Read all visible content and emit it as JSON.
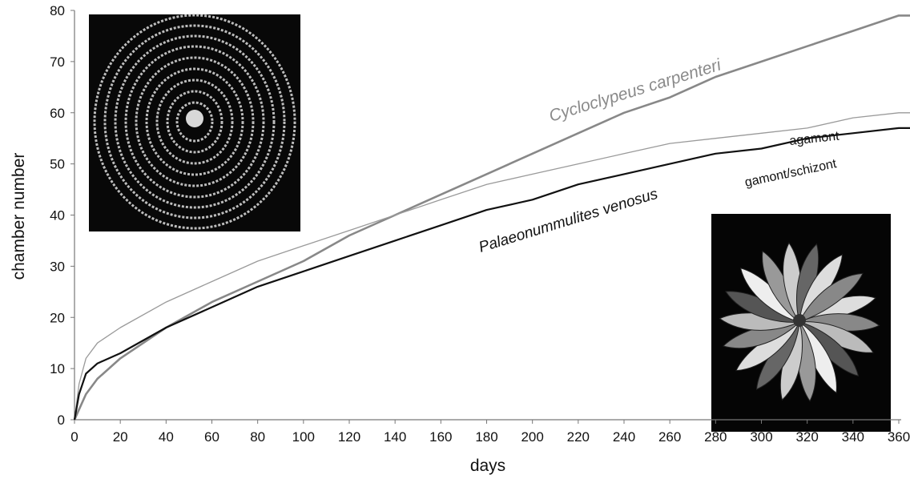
{
  "chart_data": {
    "type": "line",
    "x_label": "days",
    "y_label": "chamber number",
    "xlim": [
      0,
      365
    ],
    "ylim": [
      0,
      80
    ],
    "xticks": [
      0,
      20,
      40,
      60,
      80,
      100,
      120,
      140,
      160,
      180,
      200,
      220,
      240,
      260,
      280,
      300,
      320,
      340,
      360
    ],
    "yticks": [
      0,
      10,
      20,
      30,
      40,
      50,
      60,
      70,
      80
    ],
    "x": [
      0,
      2,
      5,
      10,
      20,
      40,
      60,
      80,
      100,
      120,
      140,
      160,
      180,
      200,
      220,
      240,
      260,
      280,
      300,
      320,
      340,
      360,
      365
    ],
    "series": [
      {
        "name": "Cycloclypeus carpenteri",
        "color": "#888888",
        "values": [
          0,
          2,
          5,
          8,
          12,
          18,
          23,
          27,
          31,
          36,
          40,
          44,
          48,
          52,
          56,
          60,
          63,
          67,
          70,
          73,
          76,
          79,
          79
        ]
      },
      {
        "name": "agamont",
        "color": "#9a9a9a",
        "values": [
          0,
          7,
          12,
          15,
          18,
          23,
          27,
          31,
          34,
          37,
          40,
          43,
          46,
          48,
          50,
          52,
          54,
          55,
          56,
          57,
          59,
          60,
          60
        ]
      },
      {
        "name": "gamont/schizont",
        "color": "#111111",
        "values": [
          0,
          5,
          9,
          11,
          13,
          18,
          22,
          26,
          29,
          32,
          35,
          38,
          41,
          43,
          46,
          48,
          50,
          52,
          53,
          55,
          56,
          57,
          57
        ]
      }
    ],
    "annotations": [
      "Palaeonummulites venosus"
    ]
  }
}
